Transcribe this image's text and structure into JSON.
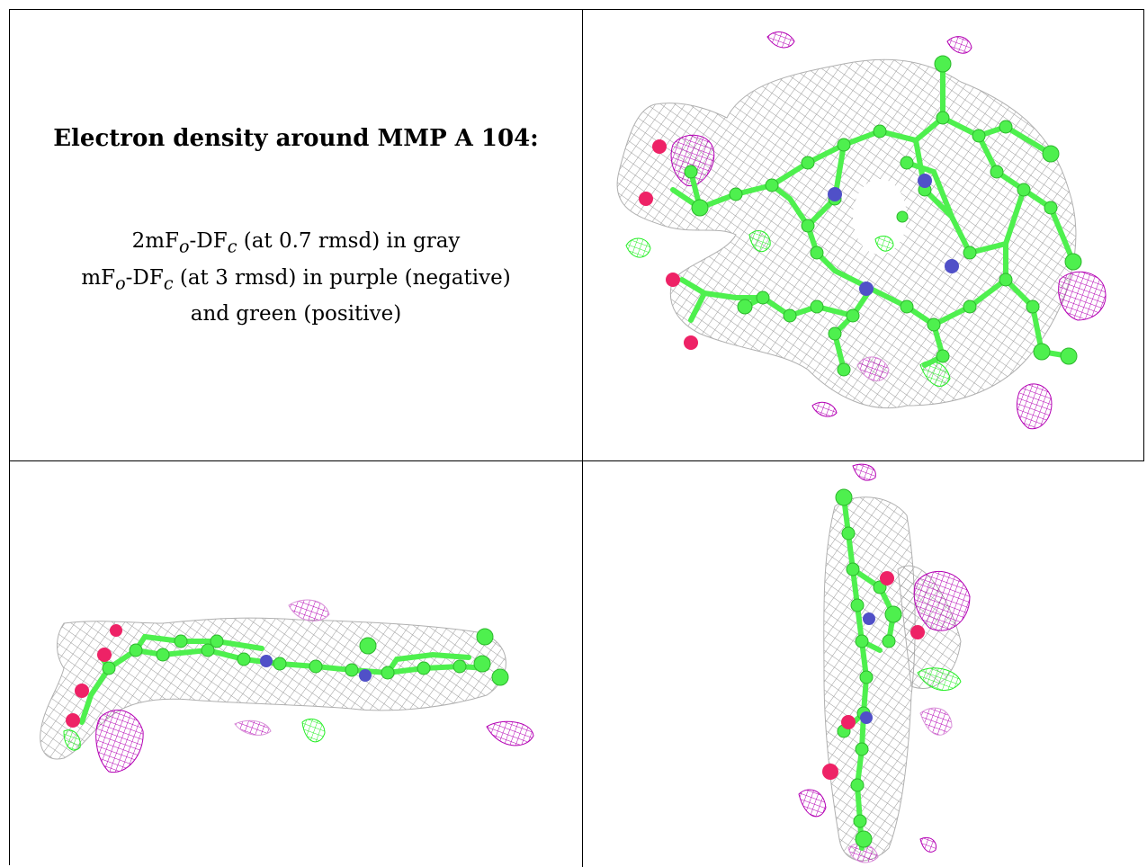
{
  "panel_text": {
    "title": "Electron density around MMP A 104:",
    "line1": "2mFo-DFc (at 0.7 rmsd) in gray",
    "line2": "mFo-DFc (at 3 rmsd) in purple (negative)",
    "line3": "and green (positive)"
  },
  "colors": {
    "mesh_gray": "#a8a8a8",
    "negative_purple": "#b400b4",
    "positive_green": "#22ee22",
    "carbon_green": "#4ef04e",
    "nitrogen_blue": "#5050c8",
    "oxygen_red": "#ee2266"
  },
  "views": [
    {
      "name": "top-view"
    },
    {
      "name": "side-view"
    },
    {
      "name": "edge-view"
    }
  ]
}
